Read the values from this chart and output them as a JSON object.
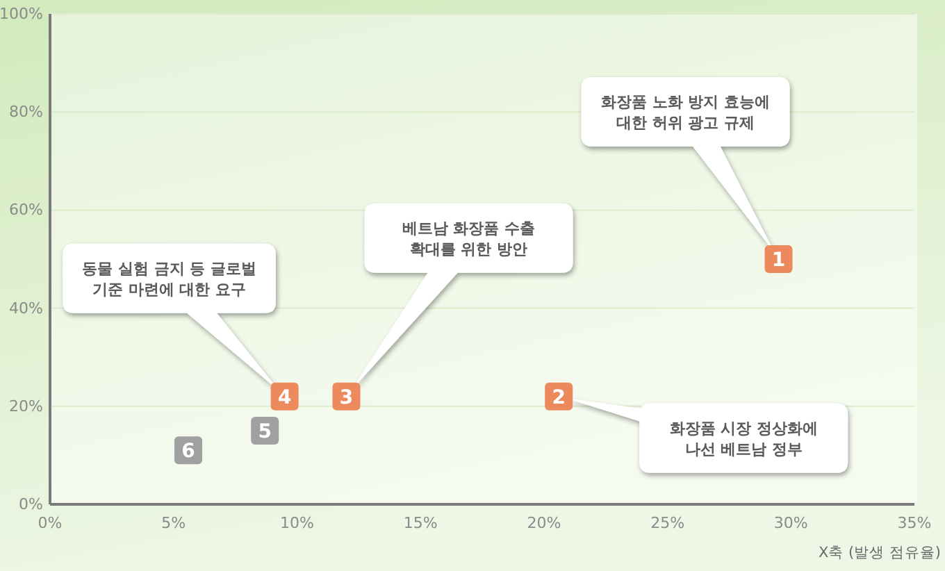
{
  "chart_data": {
    "type": "scatter",
    "xlabel": "X축 (발생 점유율)",
    "xlim": [
      0,
      35
    ],
    "xticks": [
      {
        "value": 0,
        "label": "0%"
      },
      {
        "value": 5,
        "label": "5%"
      },
      {
        "value": 10,
        "label": "10%"
      },
      {
        "value": 15,
        "label": "15%"
      },
      {
        "value": 20,
        "label": "20%"
      },
      {
        "value": 25,
        "label": "25%"
      },
      {
        "value": 30,
        "label": "30%"
      },
      {
        "value": 35,
        "label": "35%"
      }
    ],
    "ylim": [
      0,
      100
    ],
    "yticks": [
      {
        "value": 0,
        "label": "0%"
      },
      {
        "value": 20,
        "label": "20%"
      },
      {
        "value": 40,
        "label": "40%"
      },
      {
        "value": 60,
        "label": "60%"
      },
      {
        "value": 80,
        "label": "80%"
      },
      {
        "value": 100,
        "label": "100%"
      }
    ],
    "grid": "y",
    "marker": "square",
    "series": [
      {
        "color": "#ec8a5e",
        "x": [
          29.5,
          20.6,
          12,
          9.5
        ],
        "values": [
          50,
          22,
          22,
          22
        ]
      },
      {
        "color": "#a0a0a0",
        "x": [
          8.7,
          5.6
        ],
        "values": [
          15,
          11
        ]
      }
    ],
    "annotations": [
      "화장품 노화 방지 효능에\n대한 허위 광고 규제",
      "화장품 시장 정상화에\n나선 베트남 정부",
      "베트남 화장품 수출\n확대를 위한 방안",
      "동물 실험 금지 등 글로벌\n기준 마련에 대한 요구",
      {
        "text": "1",
        "x": 29.5,
        "y": 50
      },
      {
        "text": "2",
        "x": 20.6,
        "y": 22
      },
      {
        "text": "3",
        "x": 12,
        "y": 22
      },
      {
        "text": "4",
        "x": 9.5,
        "y": 22
      },
      {
        "text": "5",
        "x": 8.7,
        "y": 15
      },
      {
        "text": "6",
        "x": 5.6,
        "y": 11
      }
    ]
  }
}
